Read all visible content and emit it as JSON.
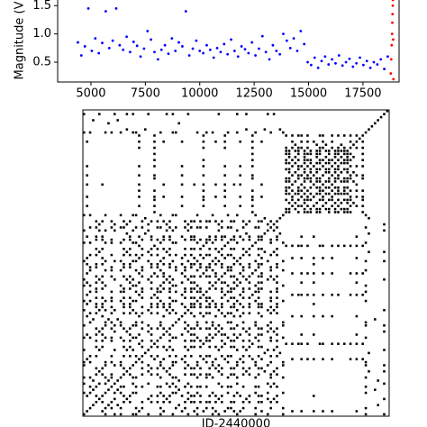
{
  "chart_data": [
    {
      "type": "scatter",
      "ylabel": "Magnitude (V",
      "xlim": [
        3470,
        19160
      ],
      "ylim": [
        0.15,
        1.6
      ],
      "xticks": [
        5000,
        7500,
        10000,
        12500,
        15000,
        17500
      ],
      "yticks": [
        0.5,
        {
          "value": 1,
          "label": "1.0"
        },
        1.5
      ],
      "series": [
        {
          "color": "#0000ff",
          "x": [
            4400,
            4560,
            4720,
            4880,
            5040,
            5200,
            5360,
            5520,
            5680,
            5840,
            6000,
            6160,
            6320,
            6480,
            6640,
            6800,
            6960,
            7120,
            7280,
            7440,
            7600,
            7760,
            7920,
            8080,
            8240,
            8400,
            8560,
            8720,
            8880,
            9040,
            9200,
            9360,
            9520,
            9680,
            9840,
            10000,
            10160,
            10320,
            10480,
            10640,
            10800,
            10960,
            11120,
            11280,
            11440,
            11600,
            11760,
            11920,
            12080,
            12240,
            12400,
            12560,
            12720,
            12880,
            13040,
            13200,
            13360,
            13520,
            13680,
            13840,
            14000,
            14160,
            14320,
            14480,
            14640,
            14800,
            14960,
            15120,
            15280,
            15440,
            15600,
            15760,
            15920,
            16080,
            16240,
            16400,
            16560,
            16720,
            16880,
            17040,
            17200,
            17360,
            17520,
            17680,
            17840,
            18000,
            18160,
            18320,
            18480,
            18640
          ],
          "values": [
            0.85,
            0.62,
            0.78,
            1.45,
            0.7,
            0.92,
            0.66,
            0.84,
            1.4,
            0.75,
            0.88,
            1.45,
            0.8,
            0.72,
            0.95,
            0.68,
            0.86,
            0.79,
            0.6,
            0.74,
            1.05,
            0.9,
            0.68,
            0.55,
            0.72,
            0.8,
            0.65,
            0.92,
            0.7,
            0.85,
            0.78,
            1.4,
            0.62,
            0.74,
            0.88,
            0.7,
            0.66,
            0.8,
            0.72,
            0.58,
            0.75,
            0.68,
            0.82,
            0.64,
            0.9,
            0.7,
            0.6,
            0.78,
            0.73,
            0.66,
            0.85,
            0.62,
            0.74,
            0.96,
            0.68,
            0.55,
            0.8,
            0.7,
            0.64,
            1.0,
            0.88,
            0.75,
            0.92,
            0.7,
            1.05,
            0.82,
            0.5,
            0.45,
            0.58,
            0.4,
            0.52,
            0.6,
            0.46,
            0.55,
            0.48,
            0.62,
            0.44,
            0.5,
            0.56,
            0.42,
            0.48,
            0.58,
            0.45,
            0.52,
            0.4,
            0.5,
            0.46,
            0.55,
            0.38,
            0.6
          ]
        },
        {
          "color": "#ff0000",
          "x": [
            18780,
            18800,
            18820,
            18840,
            18850,
            18860,
            18870,
            18880,
            18890,
            18900
          ],
          "values": [
            0.3,
            0.55,
            0.8,
            1.0,
            1.2,
            1.35,
            1.5,
            1.6,
            0.9,
            0.2
          ]
        }
      ]
    },
    {
      "type": "recurrence",
      "xlabel": "JD-2440000"
    }
  ]
}
